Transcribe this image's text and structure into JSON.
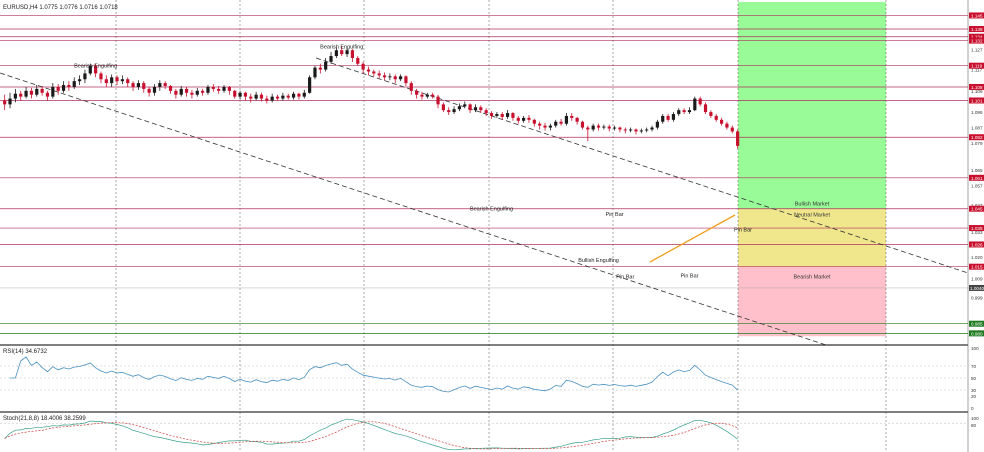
{
  "window": {
    "symbol_line": "EURUSD,H4  1.0775 1.0776 1.0716 1.0718",
    "rsi_label": "RSI(14) 34.6732",
    "stoch_label": "Stoch(21,8,8) 18.4006 38.2599"
  },
  "colors": {
    "bull": "#1a1a1a",
    "bear": "#c8102e",
    "level_line": "#b03060",
    "bullish_zone": "#98fb98",
    "neutral_zone": "#f0e68c",
    "bearish_zone": "#ffc0cb",
    "trendline": "#f0a020",
    "rsi_line": "#4a90c0",
    "stoch_main": "#3aa08a",
    "stoch_signal": "#d04040",
    "bid_tag": "#c8102e",
    "green_tag": "#1f7a1f"
  },
  "price_axis": {
    "ticks": [
      {
        "price": 1.1275,
        "label": "1.127"
      },
      {
        "price": 1.117,
        "label": "1.117"
      },
      {
        "price": 1.106,
        "label": "1.106"
      },
      {
        "price": 1.095,
        "label": "1.095"
      },
      {
        "price": 1.087,
        "label": "1.087"
      },
      {
        "price": 1.079,
        "label": "1.079"
      },
      {
        "price": 1.065,
        "label": "1.065"
      },
      {
        "price": 1.057,
        "label": "1.057"
      },
      {
        "price": 1.047,
        "label": "1.047"
      },
      {
        "price": 1.033,
        "label": "1.033"
      },
      {
        "price": 1.02,
        "label": "1.020"
      },
      {
        "price": 1.009,
        "label": "1.009"
      },
      {
        "price": 0.999,
        "label": "0.999"
      }
    ],
    "level_tags": [
      {
        "price": 1.145,
        "label": "1.145"
      },
      {
        "price": 1.138,
        "label": "1.138"
      },
      {
        "price": 1.134,
        "label": "1.134"
      },
      {
        "price": 1.132,
        "label": "1.132"
      },
      {
        "price": 1.119,
        "label": "1.119"
      },
      {
        "price": 1.108,
        "label": "1.108"
      },
      {
        "price": 1.101,
        "label": "1.101"
      },
      {
        "price": 1.082,
        "label": "1.082"
      },
      {
        "price": 1.061,
        "label": "1.061"
      },
      {
        "price": 1.045,
        "label": "1.045"
      },
      {
        "price": 1.035,
        "label": "1.035"
      },
      {
        "price": 1.0265,
        "label": "1.026"
      },
      {
        "price": 1.015,
        "label": "1.015"
      }
    ],
    "bid_tag": {
      "price": 1.004,
      "label": "1.0040"
    },
    "green_tags": [
      {
        "price": 0.9855,
        "label": "0.985"
      },
      {
        "price": 0.9805,
        "label": "0.980"
      }
    ]
  },
  "zones": [
    {
      "label": "Bullish Market",
      "from": 1.045,
      "to": 1.152
    },
    {
      "label": "Neutral Market",
      "from": 1.015,
      "to": 1.045
    },
    {
      "label": "Bearish Market",
      "from": 0.979,
      "to": 1.015
    }
  ],
  "annotations": [
    {
      "text": "Bearish Engulfing",
      "bar": 17,
      "price": 1.118
    },
    {
      "text": "Bearish Engulfing",
      "bar": 63,
      "price": 1.128
    },
    {
      "text": "Bearish Engulfing",
      "bar": 91,
      "price": 1.044
    },
    {
      "text": "Pin Bar",
      "bar": 114,
      "price": 1.0412
    },
    {
      "text": "Pin Bar",
      "bar": 138,
      "price": 1.0333
    },
    {
      "text": "Bullish Engulfing",
      "bar": 111,
      "price": 1.0175
    },
    {
      "text": "Pin Bar",
      "bar": 116,
      "price": 1.009
    },
    {
      "text": "Pin Bar",
      "bar": 128,
      "price": 1.0095
    }
  ],
  "rsi_axis": {
    "ticks": [
      100,
      70,
      50,
      30,
      20,
      0
    ]
  },
  "stoch_axis": {
    "ticks": [
      100,
      80
    ]
  },
  "chart_data": {
    "type": "candlestick",
    "title": "EURUSD,H4",
    "ylim": [
      0.975,
      1.153
    ],
    "candles": [
      [
        1.101,
        1.099,
        1.104,
        1.096
      ],
      [
        1.099,
        1.102,
        1.105,
        1.097
      ],
      [
        1.102,
        1.1045,
        1.107,
        1.1
      ],
      [
        1.1045,
        1.103,
        1.106,
        1.101
      ],
      [
        1.103,
        1.106,
        1.108,
        1.102
      ],
      [
        1.106,
        1.104,
        1.1075,
        1.102
      ],
      [
        1.104,
        1.107,
        1.109,
        1.103
      ],
      [
        1.107,
        1.105,
        1.1085,
        1.1035
      ],
      [
        1.105,
        1.103,
        1.106,
        1.101
      ],
      [
        1.103,
        1.108,
        1.11,
        1.102
      ],
      [
        1.108,
        1.106,
        1.1095,
        1.104
      ],
      [
        1.106,
        1.109,
        1.111,
        1.105
      ],
      [
        1.109,
        1.108,
        1.111,
        1.106
      ],
      [
        1.108,
        1.111,
        1.113,
        1.107
      ],
      [
        1.111,
        1.112,
        1.114,
        1.109
      ],
      [
        1.112,
        1.115,
        1.117,
        1.11
      ],
      [
        1.115,
        1.119,
        1.12,
        1.114
      ],
      [
        1.119,
        1.115,
        1.12,
        1.113
      ],
      [
        1.115,
        1.112,
        1.116,
        1.11
      ],
      [
        1.112,
        1.11,
        1.114,
        1.108
      ],
      [
        1.11,
        1.113,
        1.1145,
        1.108
      ],
      [
        1.113,
        1.111,
        1.114,
        1.109
      ],
      [
        1.111,
        1.112,
        1.114,
        1.1095
      ],
      [
        1.112,
        1.11,
        1.113,
        1.108
      ],
      [
        1.11,
        1.108,
        1.111,
        1.106
      ],
      [
        1.108,
        1.11,
        1.1115,
        1.1065
      ],
      [
        1.11,
        1.107,
        1.111,
        1.105
      ],
      [
        1.107,
        1.105,
        1.108,
        1.103
      ],
      [
        1.105,
        1.108,
        1.1095,
        1.1035
      ],
      [
        1.108,
        1.11,
        1.1115,
        1.106
      ],
      [
        1.11,
        1.1085,
        1.111,
        1.107
      ],
      [
        1.1085,
        1.106,
        1.109,
        1.1045
      ],
      [
        1.106,
        1.104,
        1.107,
        1.102
      ],
      [
        1.104,
        1.107,
        1.1085,
        1.103
      ],
      [
        1.107,
        1.105,
        1.108,
        1.103
      ],
      [
        1.105,
        1.104,
        1.1065,
        1.102
      ],
      [
        1.104,
        1.106,
        1.1075,
        1.103
      ],
      [
        1.106,
        1.105,
        1.107,
        1.1035
      ],
      [
        1.105,
        1.108,
        1.109,
        1.104
      ],
      [
        1.108,
        1.107,
        1.1095,
        1.1055
      ],
      [
        1.107,
        1.106,
        1.1085,
        1.1045
      ],
      [
        1.106,
        1.108,
        1.109,
        1.105
      ],
      [
        1.108,
        1.106,
        1.1085,
        1.104
      ],
      [
        1.106,
        1.103,
        1.1065,
        1.102
      ],
      [
        1.103,
        1.105,
        1.106,
        1.1015
      ],
      [
        1.105,
        1.103,
        1.1055,
        1.101
      ],
      [
        1.103,
        1.102,
        1.1045,
        1.1
      ],
      [
        1.102,
        1.104,
        1.1055,
        1.101
      ],
      [
        1.104,
        1.102,
        1.105,
        1.1005
      ],
      [
        1.102,
        1.101,
        1.1035,
        1.0995
      ],
      [
        1.101,
        1.103,
        1.1045,
        1.1
      ],
      [
        1.103,
        1.102,
        1.104,
        1.101
      ],
      [
        1.102,
        1.1035,
        1.105,
        1.101
      ],
      [
        1.1035,
        1.1025,
        1.1045,
        1.1015
      ],
      [
        1.1025,
        1.1045,
        1.1055,
        1.1015
      ],
      [
        1.1045,
        1.103,
        1.105,
        1.1015
      ],
      [
        1.103,
        1.105,
        1.1065,
        1.102
      ],
      [
        1.105,
        1.113,
        1.114,
        1.1045
      ],
      [
        1.113,
        1.118,
        1.119,
        1.112
      ],
      [
        1.118,
        1.117,
        1.12,
        1.115
      ],
      [
        1.117,
        1.121,
        1.123,
        1.116
      ],
      [
        1.121,
        1.124,
        1.126,
        1.12
      ],
      [
        1.124,
        1.127,
        1.1285,
        1.123
      ],
      [
        1.127,
        1.125,
        1.129,
        1.124
      ],
      [
        1.125,
        1.127,
        1.128,
        1.1235
      ],
      [
        1.127,
        1.123,
        1.1275,
        1.121
      ],
      [
        1.123,
        1.12,
        1.124,
        1.119
      ],
      [
        1.12,
        1.117,
        1.121,
        1.115
      ],
      [
        1.117,
        1.116,
        1.1185,
        1.114
      ],
      [
        1.116,
        1.115,
        1.117,
        1.1135
      ],
      [
        1.115,
        1.114,
        1.1165,
        1.1125
      ],
      [
        1.114,
        1.113,
        1.1155,
        1.1115
      ],
      [
        1.113,
        1.1135,
        1.115,
        1.1115
      ],
      [
        1.1135,
        1.112,
        1.1145,
        1.11
      ],
      [
        1.112,
        1.1135,
        1.1145,
        1.111
      ],
      [
        1.1135,
        1.11,
        1.114,
        1.1085
      ],
      [
        1.11,
        1.106,
        1.111,
        1.104
      ],
      [
        1.106,
        1.104,
        1.107,
        1.102
      ],
      [
        1.104,
        1.103,
        1.1055,
        1.1015
      ],
      [
        1.103,
        1.104,
        1.105,
        1.102
      ],
      [
        1.104,
        1.103,
        1.105,
        1.102
      ],
      [
        1.103,
        1.099,
        1.104,
        1.097
      ],
      [
        1.099,
        1.096,
        1.1,
        1.095
      ],
      [
        1.096,
        1.095,
        1.0975,
        1.0935
      ],
      [
        1.095,
        1.0965,
        1.098,
        1.094
      ],
      [
        1.0965,
        1.098,
        1.0995,
        1.0955
      ],
      [
        1.098,
        1.099,
        1.1005,
        1.097
      ],
      [
        1.099,
        1.096,
        1.0995,
        1.0945
      ],
      [
        1.096,
        1.0975,
        1.099,
        1.095
      ],
      [
        1.0975,
        1.096,
        1.0985,
        1.0945
      ],
      [
        1.096,
        1.0945,
        1.097,
        1.093
      ],
      [
        1.0945,
        1.093,
        1.0955,
        1.0915
      ],
      [
        1.093,
        1.094,
        1.095,
        1.092
      ],
      [
        1.094,
        1.0925,
        1.095,
        1.091
      ],
      [
        1.0925,
        1.0945,
        1.096,
        1.0915
      ],
      [
        1.0945,
        1.092,
        1.095,
        1.0905
      ],
      [
        1.092,
        1.0905,
        1.093,
        1.089
      ],
      [
        1.0905,
        1.092,
        1.093,
        1.0895
      ],
      [
        1.092,
        1.091,
        1.0935,
        1.0895
      ],
      [
        1.091,
        1.089,
        1.0915,
        1.0875
      ],
      [
        1.089,
        1.088,
        1.09,
        1.086
      ],
      [
        1.088,
        1.087,
        1.0895,
        1.0855
      ],
      [
        1.087,
        1.088,
        1.089,
        1.0855
      ],
      [
        1.088,
        1.09,
        1.091,
        1.087
      ],
      [
        1.09,
        1.089,
        1.0915,
        1.088
      ],
      [
        1.089,
        1.093,
        1.0945,
        1.088
      ],
      [
        1.093,
        1.092,
        1.0945,
        1.0905
      ],
      [
        1.092,
        1.09,
        1.0925,
        1.0885
      ],
      [
        1.09,
        1.087,
        1.0905,
        1.086
      ],
      [
        1.087,
        1.086,
        1.088,
        1.08
      ],
      [
        1.086,
        1.088,
        1.089,
        1.085
      ],
      [
        1.088,
        1.087,
        1.089,
        1.0855
      ],
      [
        1.087,
        1.0875,
        1.0885,
        1.086
      ],
      [
        1.0875,
        1.0865,
        1.0885,
        1.085
      ],
      [
        1.0865,
        1.087,
        1.088,
        1.0855
      ],
      [
        1.087,
        1.086,
        1.0875,
        1.0845
      ],
      [
        1.086,
        1.0855,
        1.087,
        1.084
      ],
      [
        1.0855,
        1.086,
        1.087,
        1.0845
      ],
      [
        1.086,
        1.085,
        1.0865,
        1.0835
      ],
      [
        1.085,
        1.0855,
        1.0865,
        1.084
      ],
      [
        1.0855,
        1.086,
        1.087,
        1.0845
      ],
      [
        1.086,
        1.087,
        1.088,
        1.085
      ],
      [
        1.087,
        1.09,
        1.091,
        1.086
      ],
      [
        1.09,
        1.093,
        1.094,
        1.089
      ],
      [
        1.093,
        1.091,
        1.094,
        1.09
      ],
      [
        1.091,
        1.094,
        1.095,
        1.09
      ],
      [
        1.094,
        1.096,
        1.097,
        1.093
      ],
      [
        1.096,
        1.095,
        1.097,
        1.094
      ],
      [
        1.095,
        1.096,
        1.0975,
        1.094
      ],
      [
        1.096,
        1.102,
        1.103,
        1.0955
      ],
      [
        1.102,
        1.099,
        1.103,
        1.098
      ],
      [
        1.099,
        1.095,
        1.1,
        1.094
      ],
      [
        1.095,
        1.093,
        1.096,
        1.092
      ],
      [
        1.093,
        1.091,
        1.094,
        1.09
      ],
      [
        1.091,
        1.089,
        1.092,
        1.088
      ],
      [
        1.089,
        1.087,
        1.09,
        1.086
      ],
      [
        1.087,
        1.085,
        1.088,
        1.084
      ],
      [
        1.085,
        1.0775,
        1.086,
        1.076
      ]
    ]
  }
}
